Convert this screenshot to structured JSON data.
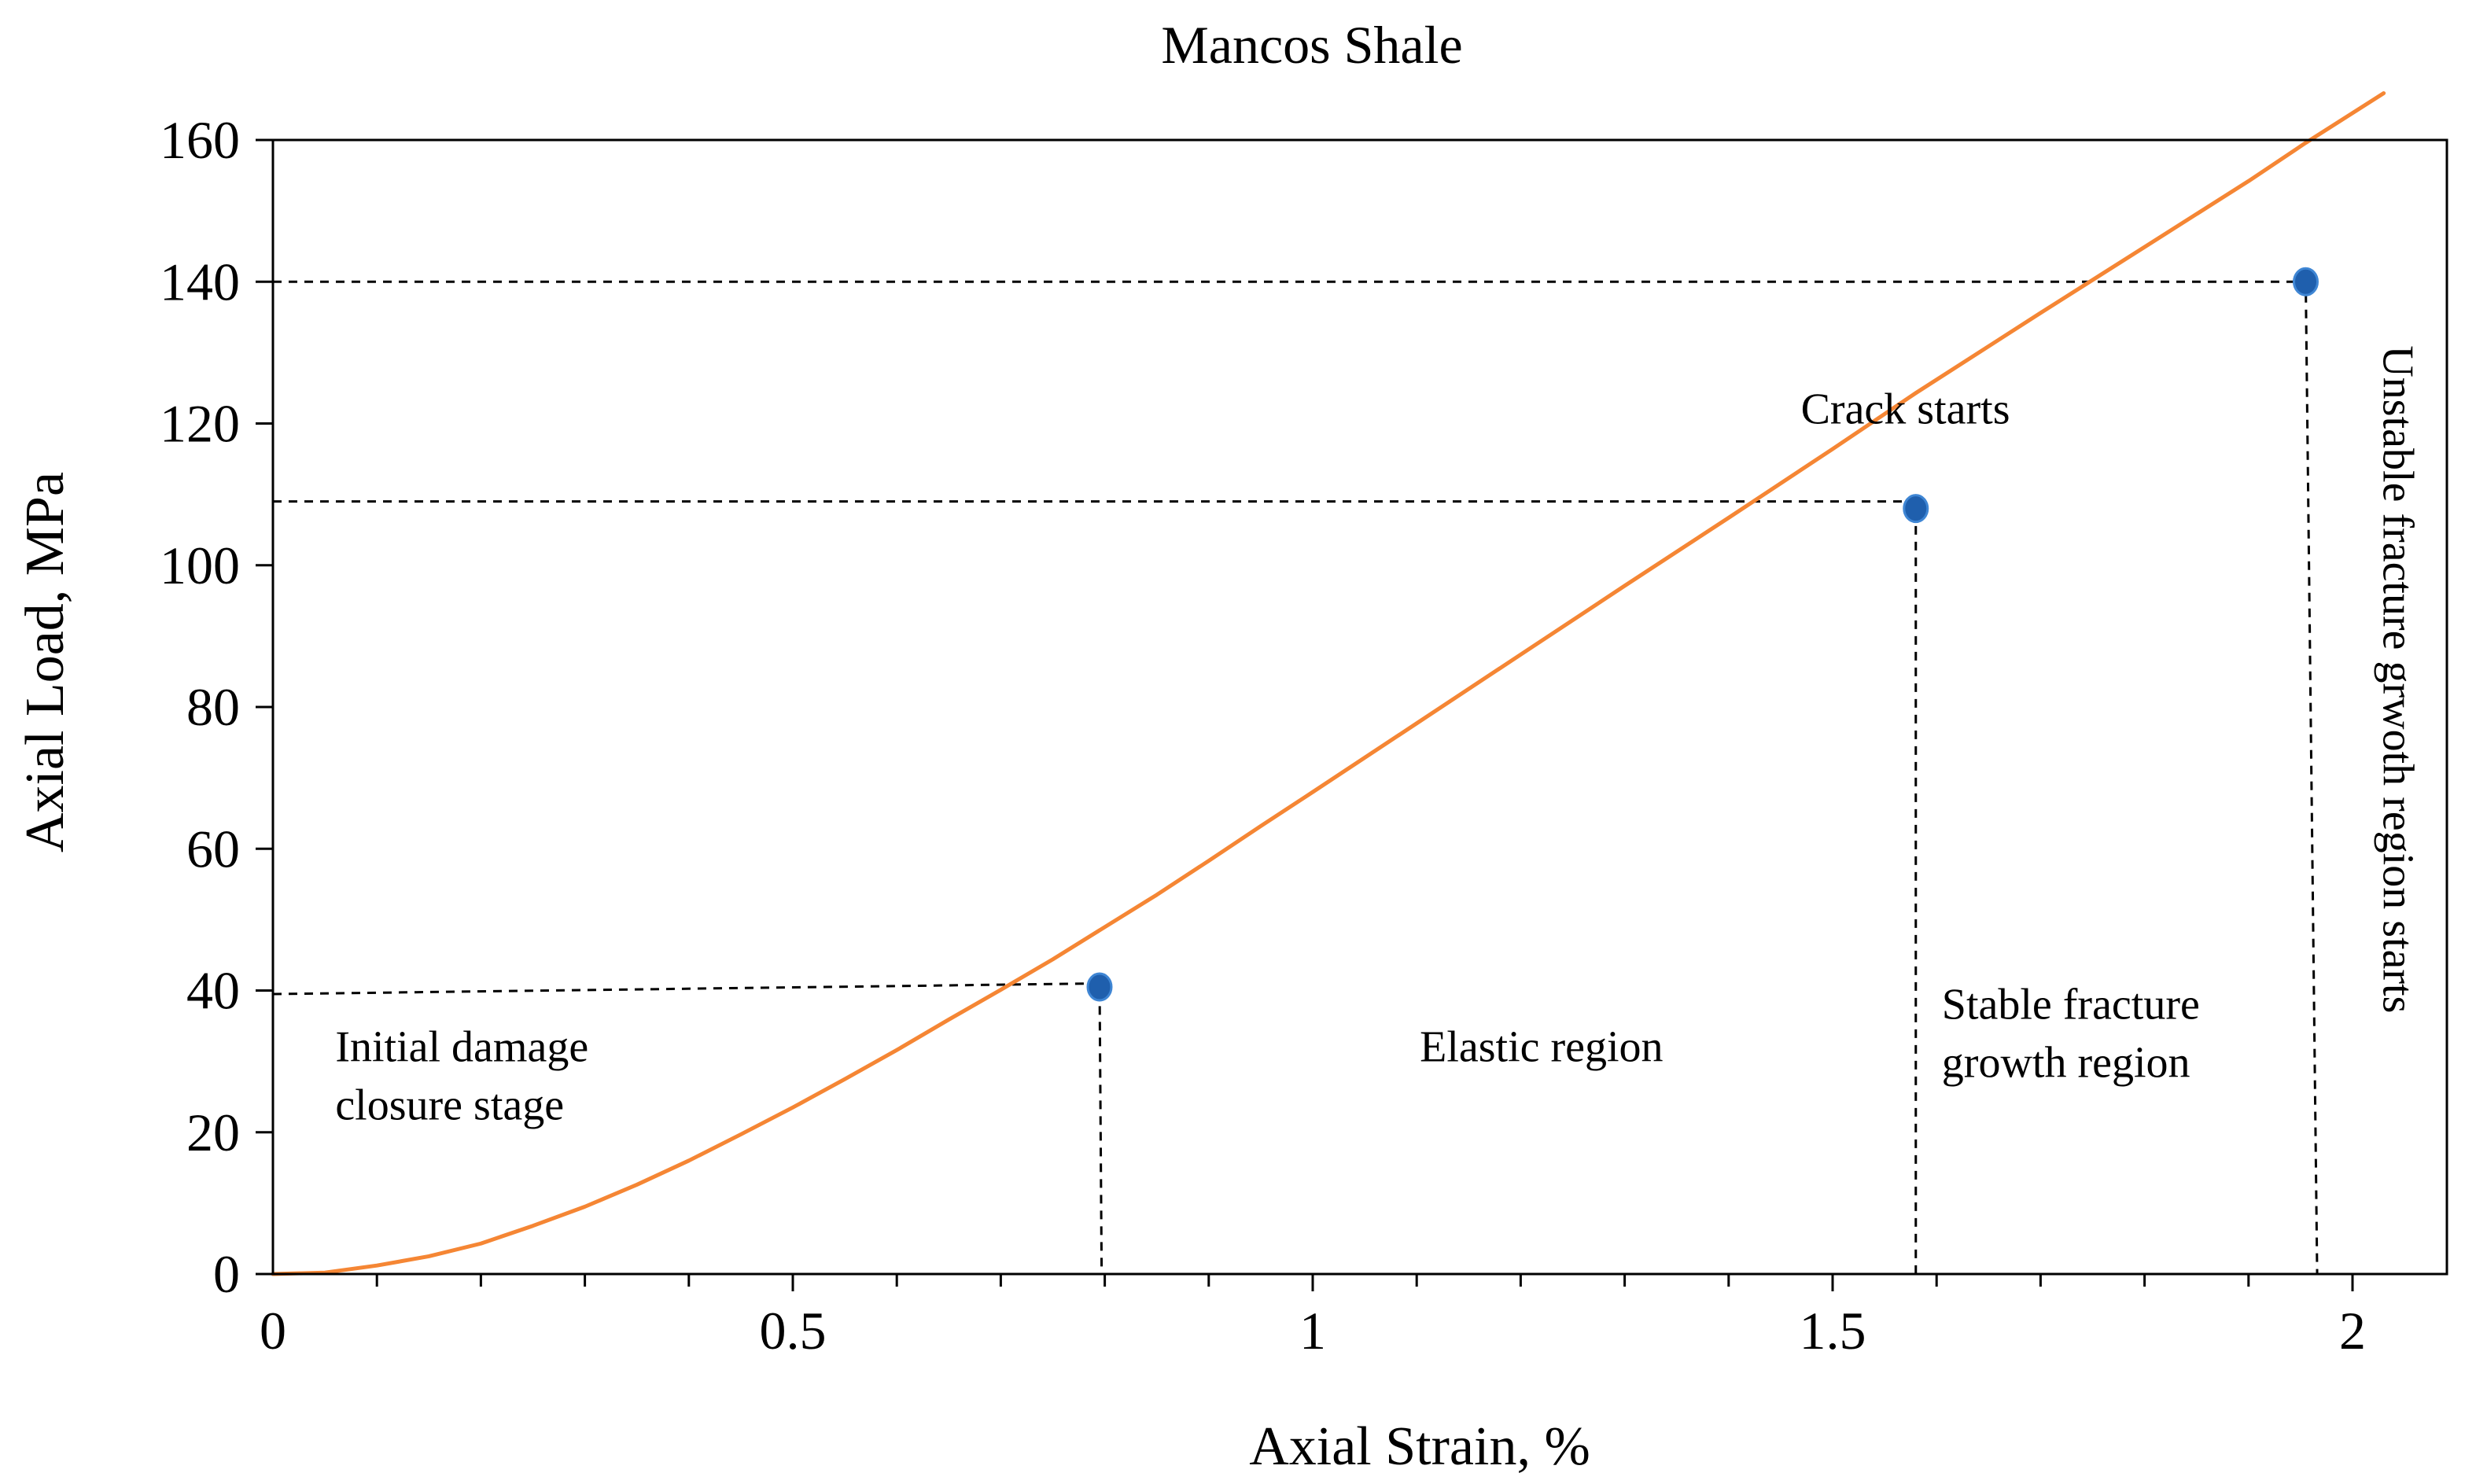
{
  "chart_data": {
    "type": "line",
    "title": "Mancos Shale",
    "xlabel": "Axial Strain, %",
    "ylabel": "Axial Load, MPa",
    "xlim": [
      0,
      2.08
    ],
    "ylim": [
      0,
      160
    ],
    "x_ticks": [
      0,
      0.5,
      1,
      1.5,
      2
    ],
    "x_tick_labels": [
      "0",
      "0.5",
      "1",
      "1.5",
      "2"
    ],
    "x_minor_step": 0.1,
    "y_ticks": [
      0,
      20,
      40,
      60,
      80,
      100,
      120,
      140,
      160
    ],
    "y_tick_labels": [
      "0",
      "20",
      "40",
      "60",
      "80",
      "100",
      "120",
      "140",
      "160"
    ],
    "grid": false,
    "series": [
      {
        "name": "Axial Load",
        "color": "#F58634",
        "x": [
          0,
          0.05,
          0.1,
          0.15,
          0.2,
          0.25,
          0.3,
          0.35,
          0.4,
          0.45,
          0.5,
          0.55,
          0.6,
          0.65,
          0.7,
          0.75,
          0.795,
          0.85,
          0.9,
          0.95,
          1.0,
          1.1,
          1.2,
          1.3,
          1.4,
          1.5,
          1.58,
          1.7,
          1.8,
          1.9,
          1.955,
          2.03
        ],
        "y": [
          0,
          0.2,
          1.2,
          2.5,
          4.3,
          6.8,
          9.5,
          12.6,
          16.0,
          19.7,
          23.5,
          27.5,
          31.6,
          35.9,
          40.1,
          44.4,
          48.5,
          53.5,
          58.3,
          63.2,
          68.0,
          77.7,
          87.4,
          97.1,
          106.7,
          116.4,
          124.3,
          135.6,
          144.9,
          154.2,
          159.6,
          166.6
        ]
      }
    ],
    "markers": [
      {
        "x": 0.795,
        "y": 40.5,
        "color": "#1F5FAD"
      },
      {
        "x": 1.58,
        "y": 108,
        "color": "#1F5FAD"
      },
      {
        "x": 1.955,
        "y": 140,
        "color": "#1F5FAD"
      }
    ],
    "reference_lines": [
      {
        "from": [
          0,
          39.5
        ],
        "corner": [
          0.795,
          41
        ],
        "to": [
          0.797,
          0
        ]
      },
      {
        "from": [
          0,
          109
        ],
        "corner": [
          1.58,
          109
        ],
        "to": [
          1.58,
          0
        ]
      },
      {
        "from": [
          0,
          140
        ],
        "corner": [
          1.955,
          140
        ],
        "to": [
          1.966,
          0
        ]
      }
    ],
    "annotations": [
      {
        "text": [
          "Initial damage",
          "closure stage"
        ],
        "x": 0.06,
        "y": 30,
        "align": "start",
        "rotate": 0
      },
      {
        "text": [
          "Elastic region"
        ],
        "x": 1.22,
        "y": 30,
        "align": "middle",
        "rotate": 0
      },
      {
        "text": [
          "Crack starts"
        ],
        "x": 1.57,
        "y": 120,
        "align": "middle",
        "rotate": 0
      },
      {
        "text": [
          "Stable fracture",
          "growth region"
        ],
        "x": 1.605,
        "y": 36,
        "align": "start",
        "rotate": 0
      },
      {
        "text": [
          "Unstable fracture grwoth  region starts"
        ],
        "x": 2.03,
        "y": 131,
        "align": "start",
        "rotate": 90
      }
    ]
  }
}
